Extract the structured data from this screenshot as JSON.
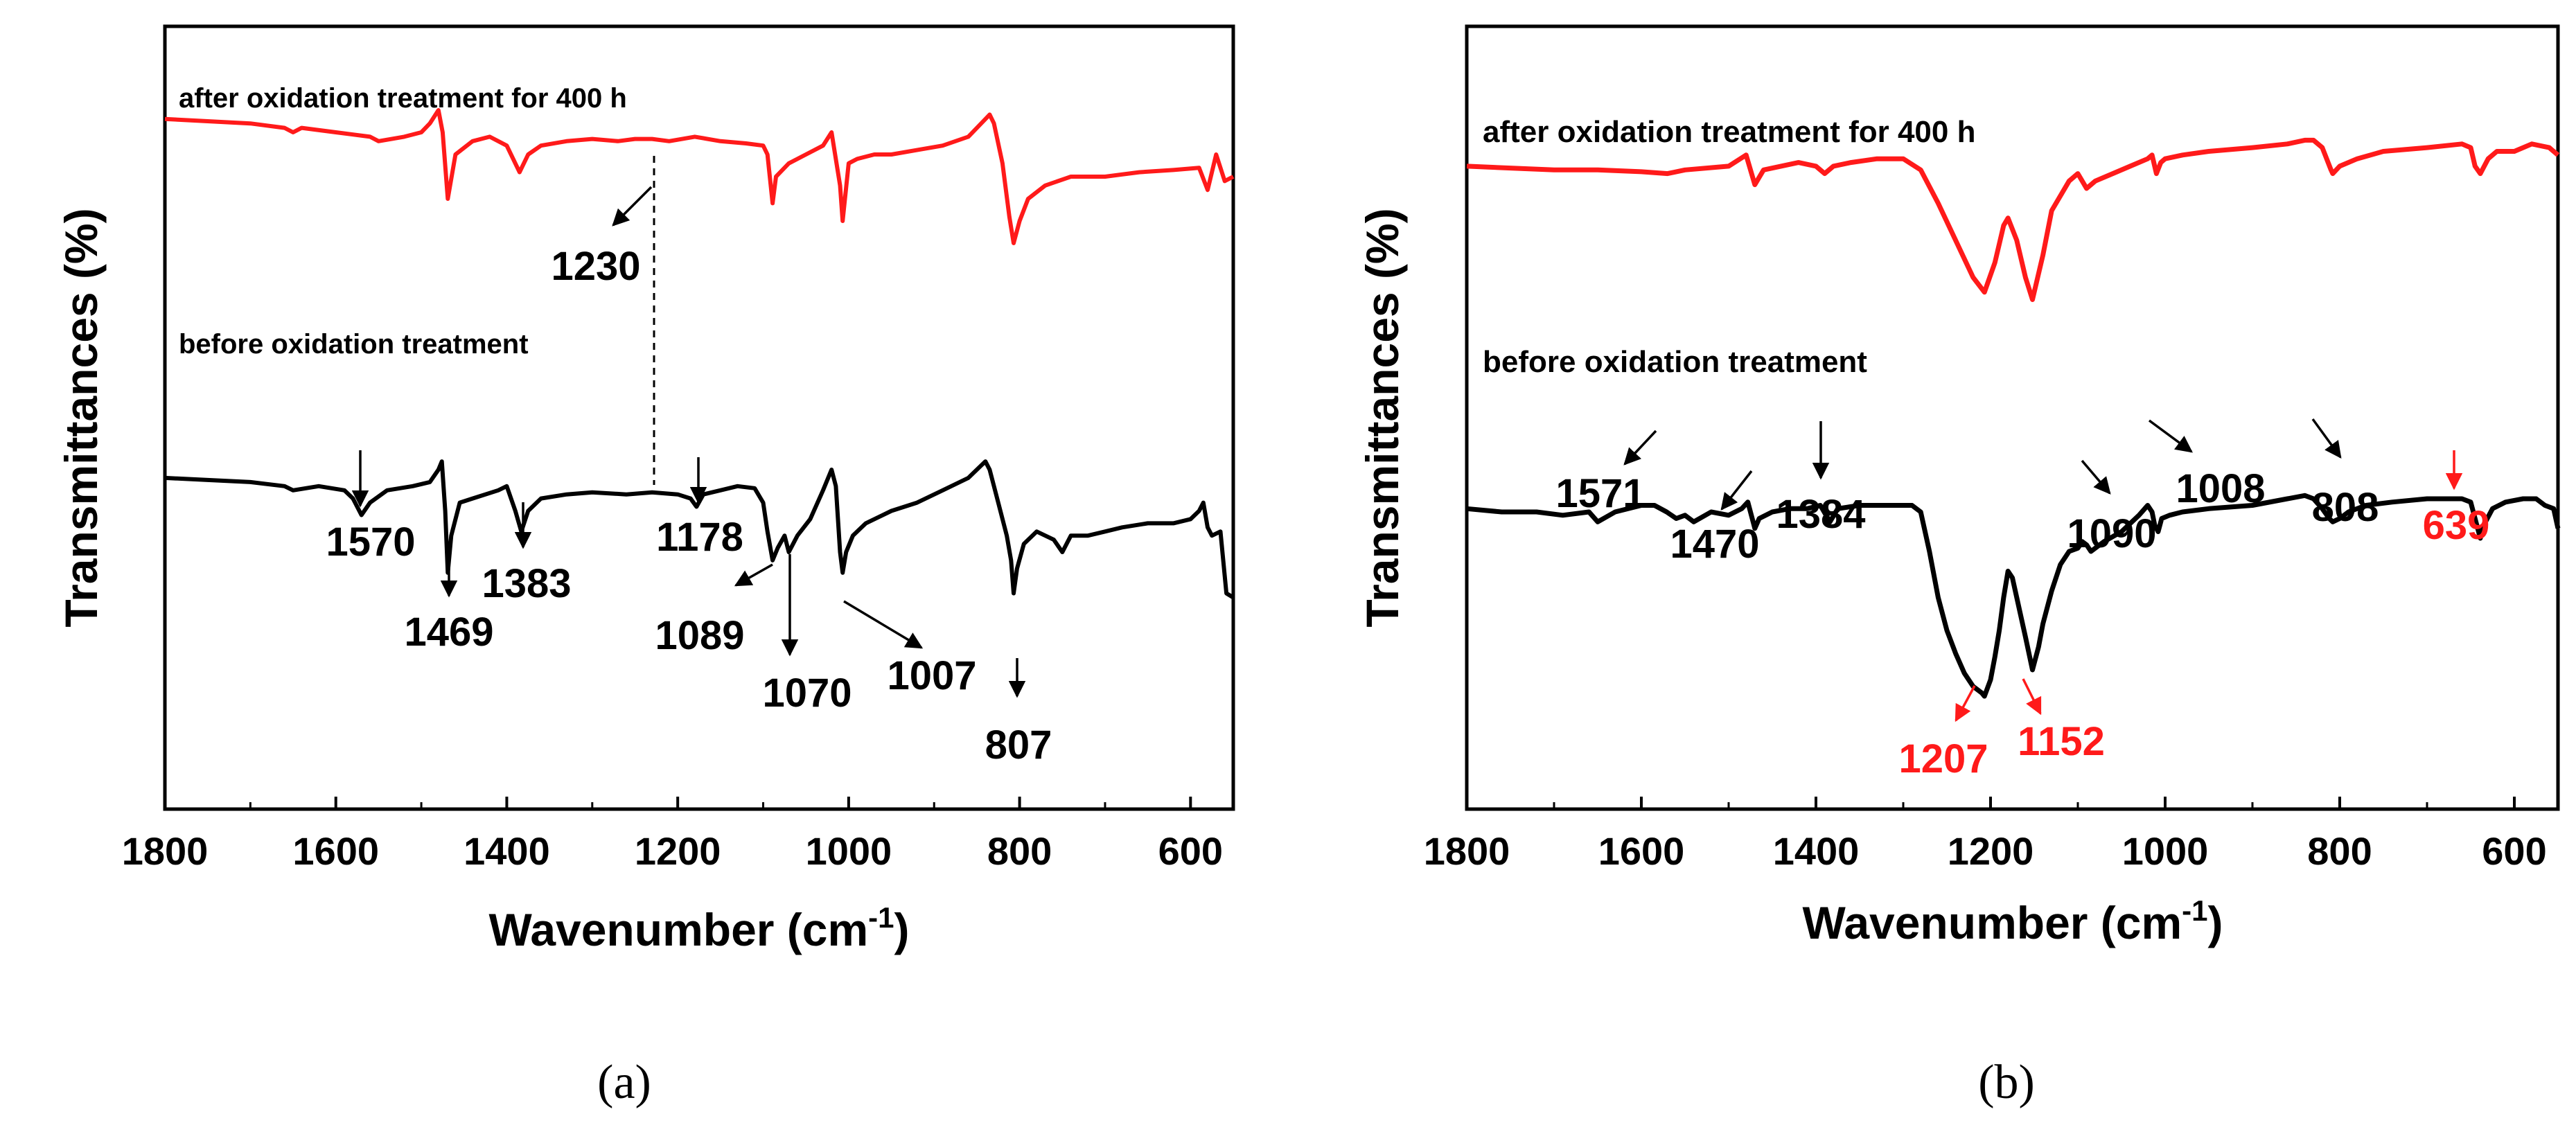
{
  "chart_data": [
    {
      "panel": "(a)",
      "type": "line",
      "xlabel": "Wavenumber (cm",
      "xlabel_sup": "-1",
      "xlabel_close": ")",
      "ylabel": "Transmittances (%)",
      "xlim": [
        1800,
        550
      ],
      "ylim": [
        0,
        100
      ],
      "xticks": [
        1800,
        1600,
        1400,
        1200,
        1000,
        800,
        600
      ],
      "colors": {
        "after": "#ff1a1a",
        "before": "#000000"
      },
      "series": [
        {
          "name": "after oxidation treatment for 400 h",
          "key": "after",
          "color": "#ff1a1a",
          "x": [
            1800,
            1750,
            1700,
            1660,
            1650,
            1640,
            1600,
            1560,
            1550,
            1520,
            1500,
            1490,
            1480,
            1475,
            1469,
            1460,
            1440,
            1420,
            1400,
            1385,
            1375,
            1360,
            1330,
            1300,
            1270,
            1250,
            1230,
            1210,
            1180,
            1150,
            1120,
            1100,
            1095,
            1089,
            1085,
            1070,
            1050,
            1030,
            1020,
            1010,
            1007,
            1000,
            990,
            970,
            950,
            920,
            890,
            860,
            840,
            835,
            830,
            820,
            812,
            807,
            800,
            790,
            770,
            740,
            700,
            660,
            620,
            590,
            580,
            570,
            560,
            550
          ],
          "y": [
            88,
            87.5,
            87,
            86,
            85,
            86,
            85,
            84,
            83,
            84,
            85,
            87,
            90,
            85,
            70,
            80,
            83,
            84,
            82,
            76,
            80,
            82,
            83,
            83.5,
            83,
            83.5,
            83.5,
            83,
            84,
            83,
            82.5,
            82,
            80,
            69,
            75,
            78,
            80,
            82,
            85,
            73,
            65,
            78,
            79,
            80,
            80,
            81,
            82,
            84,
            88,
            89,
            87,
            78,
            66,
            60,
            65,
            70,
            73,
            75,
            75,
            76,
            76.5,
            77,
            72,
            80,
            74,
            75
          ]
        },
        {
          "name": "before oxidation treatment",
          "key": "before",
          "color": "#000000",
          "x": [
            1800,
            1750,
            1700,
            1660,
            1650,
            1620,
            1590,
            1580,
            1570,
            1560,
            1540,
            1510,
            1490,
            1480,
            1476,
            1472,
            1469,
            1465,
            1455,
            1440,
            1410,
            1400,
            1390,
            1383,
            1375,
            1360,
            1330,
            1300,
            1260,
            1230,
            1200,
            1185,
            1178,
            1170,
            1150,
            1130,
            1110,
            1100,
            1095,
            1089,
            1083,
            1075,
            1070,
            1060,
            1045,
            1030,
            1020,
            1015,
            1010,
            1007,
            1003,
            995,
            980,
            950,
            920,
            890,
            860,
            845,
            840,
            835,
            825,
            815,
            810,
            807,
            803,
            795,
            780,
            760,
            750,
            740,
            720,
            700,
            680,
            650,
            620,
            600,
            590,
            585,
            580,
            575,
            565,
            558,
            550
          ],
          "y": [
            58,
            57.5,
            57,
            56,
            55,
            56,
            55,
            53,
            49,
            52,
            55,
            56,
            57,
            60,
            62,
            50,
            35,
            44,
            52,
            53,
            55,
            56,
            50,
            45,
            50,
            53,
            54,
            54.5,
            54,
            54.5,
            54,
            53,
            51,
            54,
            55,
            56,
            55.5,
            52,
            45,
            38,
            41,
            44,
            40,
            44,
            48,
            55,
            60,
            56,
            40,
            35,
            40,
            44,
            47,
            50,
            52,
            55,
            58,
            61,
            62,
            60,
            52,
            44,
            38,
            30,
            36,
            42,
            45,
            43,
            40,
            44,
            44,
            45,
            46,
            47,
            47,
            48,
            50,
            52,
            46,
            44,
            45,
            30,
            29
          ]
        }
      ],
      "annotations": [
        {
          "text": "1230",
          "color": "#000000"
        },
        {
          "text": "1570",
          "color": "#000000"
        },
        {
          "text": "1469",
          "color": "#000000"
        },
        {
          "text": "1383",
          "color": "#000000"
        },
        {
          "text": "1178",
          "color": "#000000"
        },
        {
          "text": "1089",
          "color": "#000000"
        },
        {
          "text": "1070",
          "color": "#000000"
        },
        {
          "text": "1007",
          "color": "#000000"
        },
        {
          "text": "807",
          "color": "#000000"
        }
      ]
    },
    {
      "panel": "(b)",
      "type": "line",
      "xlabel": "Wavenumber (cm",
      "xlabel_sup": "-1",
      "xlabel_close": ")",
      "ylabel": "Transmittances (%)",
      "xlim": [
        1800,
        550
      ],
      "ylim": [
        0,
        100
      ],
      "xticks": [
        1800,
        1600,
        1400,
        1200,
        1000,
        800,
        600
      ],
      "colors": {
        "after": "#ff1a1a",
        "before": "#000000"
      },
      "series": [
        {
          "name": "after oxidation treatment for 400 h",
          "key": "after",
          "color": "#ff1a1a",
          "x": [
            1800,
            1750,
            1700,
            1650,
            1600,
            1570,
            1550,
            1500,
            1480,
            1470,
            1460,
            1420,
            1400,
            1390,
            1380,
            1360,
            1330,
            1300,
            1280,
            1260,
            1240,
            1220,
            1207,
            1195,
            1185,
            1180,
            1170,
            1160,
            1152,
            1140,
            1130,
            1110,
            1100,
            1090,
            1080,
            1060,
            1040,
            1020,
            1015,
            1010,
            1005,
            1000,
            980,
            950,
            900,
            860,
            840,
            830,
            820,
            810,
            808,
            800,
            780,
            750,
            700,
            660,
            650,
            645,
            639,
            630,
            620,
            600,
            580,
            560,
            550
          ],
          "y": [
            86,
            85.5,
            85,
            85,
            84.5,
            84,
            85,
            86,
            89,
            81,
            85,
            87,
            86,
            84,
            86,
            87,
            88,
            88,
            85,
            76,
            66,
            56,
            52,
            60,
            70,
            72,
            66,
            56,
            50,
            62,
            74,
            82,
            84,
            80,
            82,
            84,
            86,
            88,
            89,
            84,
            87,
            88,
            89,
            90,
            91,
            92,
            93,
            93,
            91,
            85,
            84,
            86,
            88,
            90,
            91,
            92,
            91,
            86,
            84,
            88,
            90,
            90,
            92,
            91,
            89
          ]
        },
        {
          "name": "before oxidation treatment",
          "key": "before",
          "color": "#000000",
          "x": [
            1800,
            1760,
            1720,
            1690,
            1660,
            1650,
            1630,
            1600,
            1585,
            1571,
            1560,
            1550,
            1540,
            1520,
            1500,
            1485,
            1478,
            1470,
            1465,
            1450,
            1430,
            1410,
            1395,
            1384,
            1375,
            1350,
            1320,
            1290,
            1280,
            1270,
            1260,
            1250,
            1240,
            1230,
            1220,
            1210,
            1207,
            1200,
            1195,
            1190,
            1185,
            1180,
            1175,
            1170,
            1160,
            1152,
            1145,
            1140,
            1130,
            1120,
            1110,
            1100,
            1095,
            1090,
            1085,
            1070,
            1050,
            1030,
            1020,
            1015,
            1012,
            1008,
            1004,
            995,
            980,
            950,
            900,
            860,
            840,
            830,
            820,
            812,
            808,
            800,
            790,
            770,
            740,
            700,
            680,
            660,
            650,
            645,
            639,
            635,
            625,
            610,
            590,
            575,
            565,
            555,
            550
          ],
          "y": [
            57,
            56,
            56,
            55,
            56,
            53,
            56,
            58,
            58,
            56,
            54,
            55,
            53,
            56,
            55,
            57,
            59,
            51,
            54,
            56,
            57,
            57,
            58,
            53,
            57,
            58,
            58,
            58,
            56,
            44,
            30,
            20,
            13,
            7,
            3,
            1,
            0,
            5,
            12,
            20,
            30,
            38,
            36,
            30,
            18,
            8,
            15,
            22,
            32,
            40,
            44,
            45,
            47,
            46,
            44,
            47,
            50,
            55,
            58,
            56,
            52,
            50,
            54,
            55,
            56,
            57,
            58,
            60,
            61,
            60,
            57,
            54,
            53,
            54,
            56,
            58,
            59,
            60,
            60,
            60,
            59,
            54,
            48,
            52,
            57,
            59,
            60,
            60,
            58,
            57,
            51
          ]
        }
      ],
      "annotations": [
        {
          "text": "1571",
          "color": "#000000"
        },
        {
          "text": "1470",
          "color": "#000000"
        },
        {
          "text": "1384",
          "color": "#000000"
        },
        {
          "text": "1090",
          "color": "#000000"
        },
        {
          "text": "1008",
          "color": "#000000"
        },
        {
          "text": "808",
          "color": "#000000"
        },
        {
          "text": "639",
          "color": "#ff1a1a"
        },
        {
          "text": "1207",
          "color": "#ff1a1a"
        },
        {
          "text": "1152",
          "color": "#ff1a1a"
        }
      ]
    }
  ]
}
